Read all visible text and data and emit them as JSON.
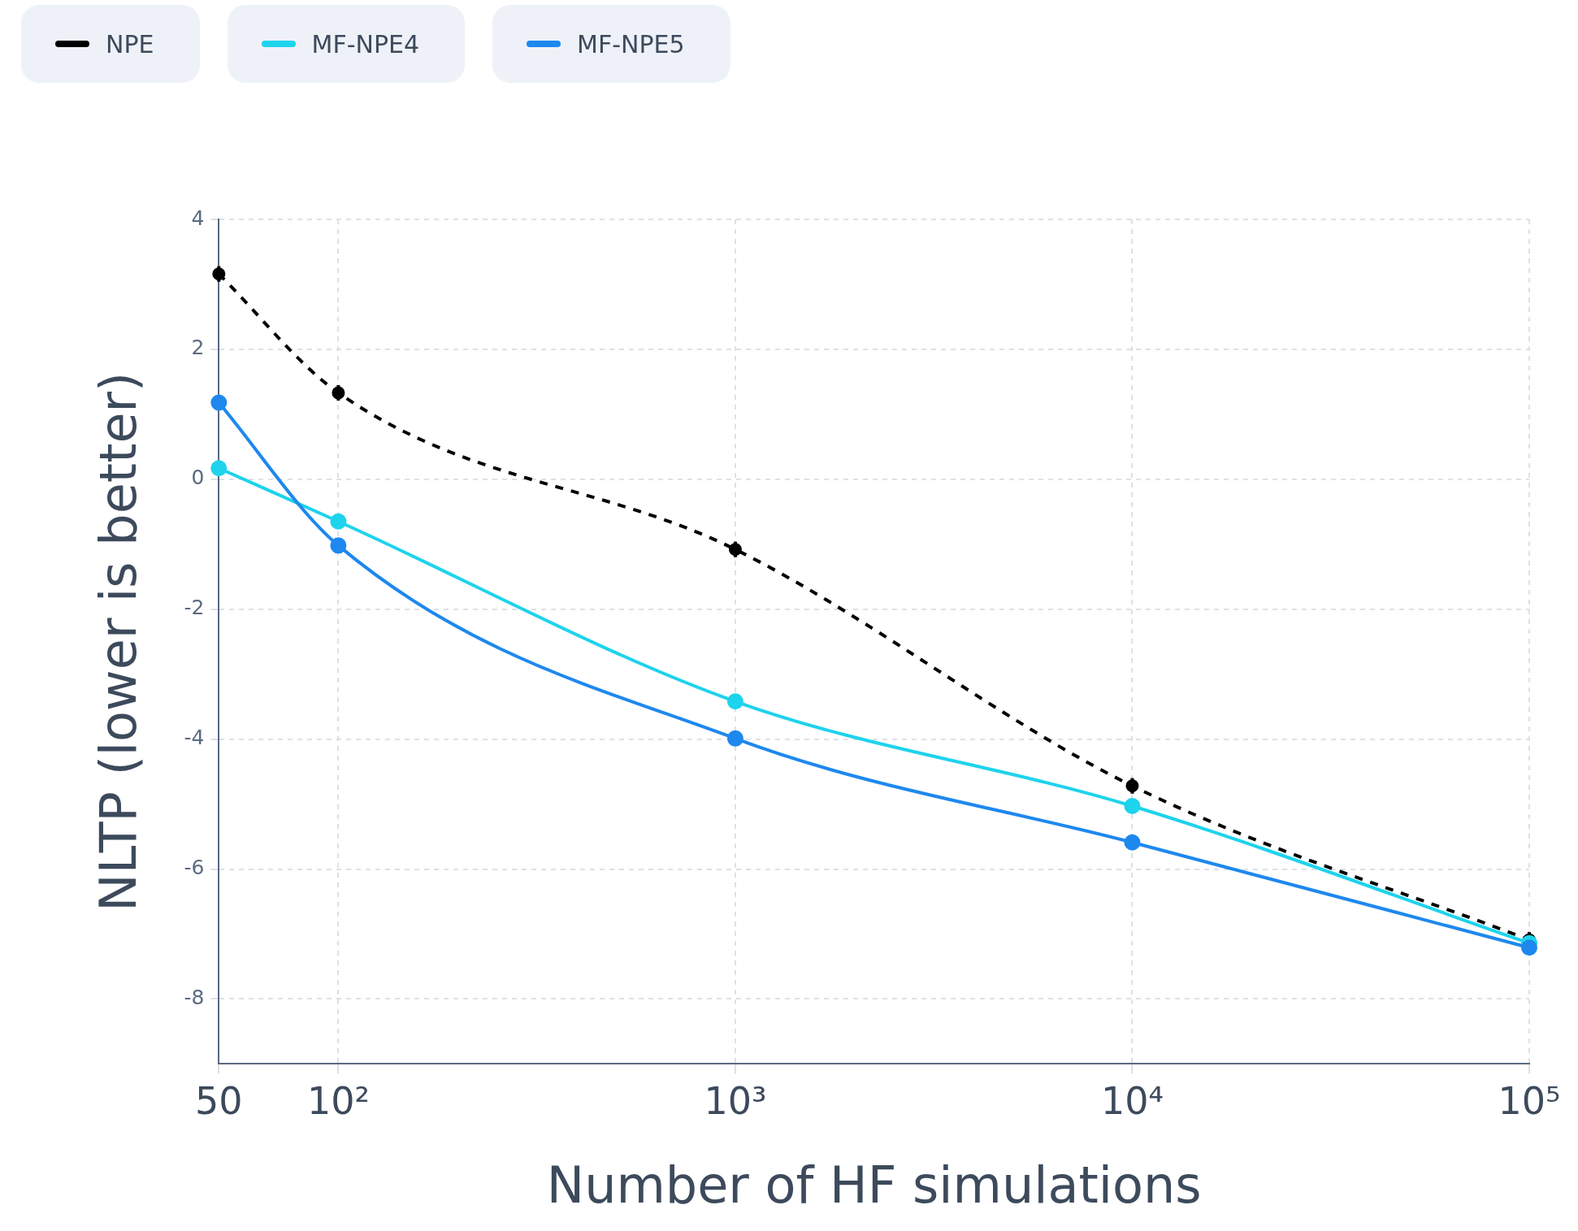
{
  "chart_data": {
    "type": "line",
    "xlabel": "Number of HF simulations",
    "ylabel": "NLTP (lower is better)",
    "x": [
      50,
      100,
      1000,
      10000,
      100000
    ],
    "series": [
      {
        "name": "NPE",
        "color": "#000000",
        "values": [
          3.16,
          1.33,
          -1.08,
          -4.72,
          -7.09
        ],
        "errors": [
          0.12,
          0.12,
          0.12,
          0.12,
          0.12
        ],
        "line_style": "dashed"
      },
      {
        "name": "MF-NPE4",
        "color": "#1ed3ec",
        "values": [
          0.17,
          -0.65,
          -3.42,
          -5.03,
          -7.14
        ]
      },
      {
        "name": "MF-NPE5",
        "color": "#1e88ee",
        "values": [
          1.18,
          -1.02,
          -3.99,
          -5.59,
          -7.21
        ]
      }
    ],
    "log": "x",
    "xlim": [
      50,
      100000
    ],
    "xticks": [
      50,
      {
        "value": 100,
        "label": "10²"
      },
      {
        "value": 1000,
        "label": "10³"
      },
      {
        "value": 10000,
        "label": "10⁴"
      },
      {
        "value": 100000,
        "label": "10⁵"
      }
    ],
    "ylim": [
      -9,
      4
    ],
    "yticks": [
      -8,
      -6,
      -4,
      -2,
      0,
      2,
      4
    ],
    "grid": true,
    "legend": "top left",
    "marker": "circle"
  }
}
